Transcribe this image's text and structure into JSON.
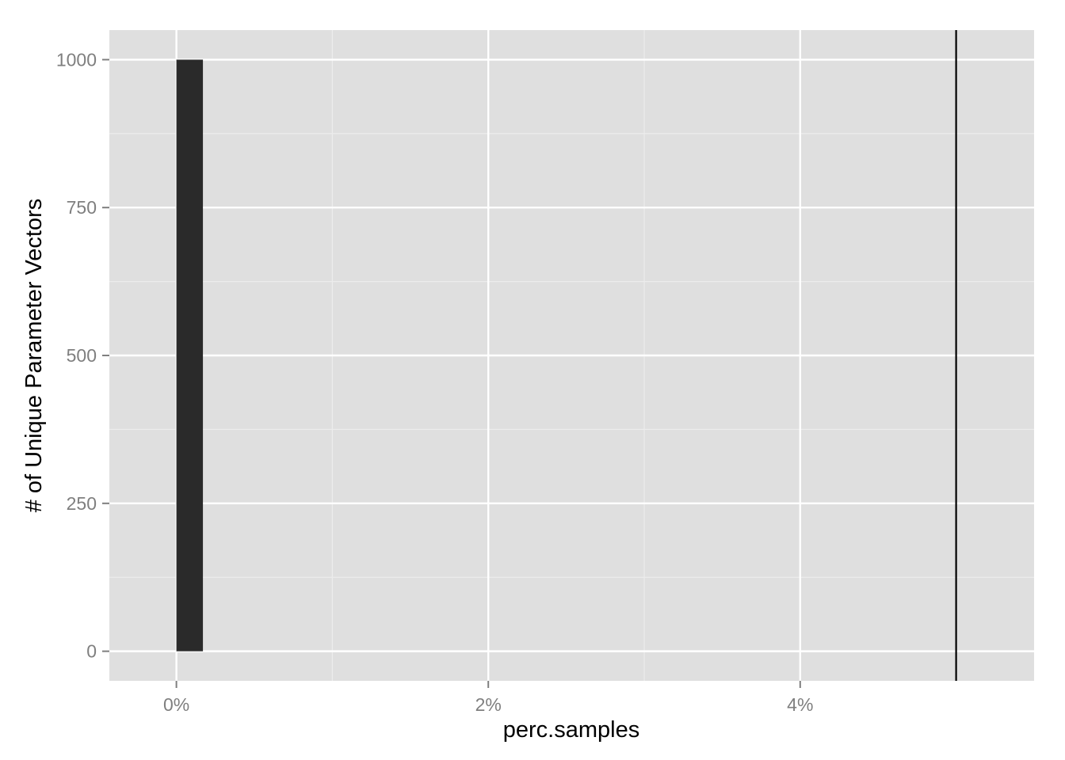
{
  "chart_data": {
    "type": "bar",
    "xlabel": "perc.samples",
    "ylabel": "# of Unique Parameter Vectors",
    "x_tick_labels": [
      "0%",
      "2%",
      "4%"
    ],
    "x_tick_values": [
      0,
      2,
      4
    ],
    "y_tick_labels": [
      "0",
      "250",
      "500",
      "750",
      "1000"
    ],
    "y_tick_values": [
      0,
      250,
      500,
      750,
      1000
    ],
    "xlim": [
      -0.43,
      5.5
    ],
    "ylim": [
      -50,
      1050
    ],
    "bars": [
      {
        "x_start": 0.0,
        "x_end": 0.17,
        "value": 1000
      }
    ],
    "vline": {
      "x": 5.0
    },
    "grid": true,
    "legend": "none",
    "colors": {
      "panel_background": "#dfdfdf",
      "grid_major": "#ffffff",
      "grid_minor": "#ececec",
      "bar_fill": "#2a2a2a",
      "vline": "#000000",
      "tick_label": "#7f7f7f",
      "axis_title": "#000000"
    }
  }
}
